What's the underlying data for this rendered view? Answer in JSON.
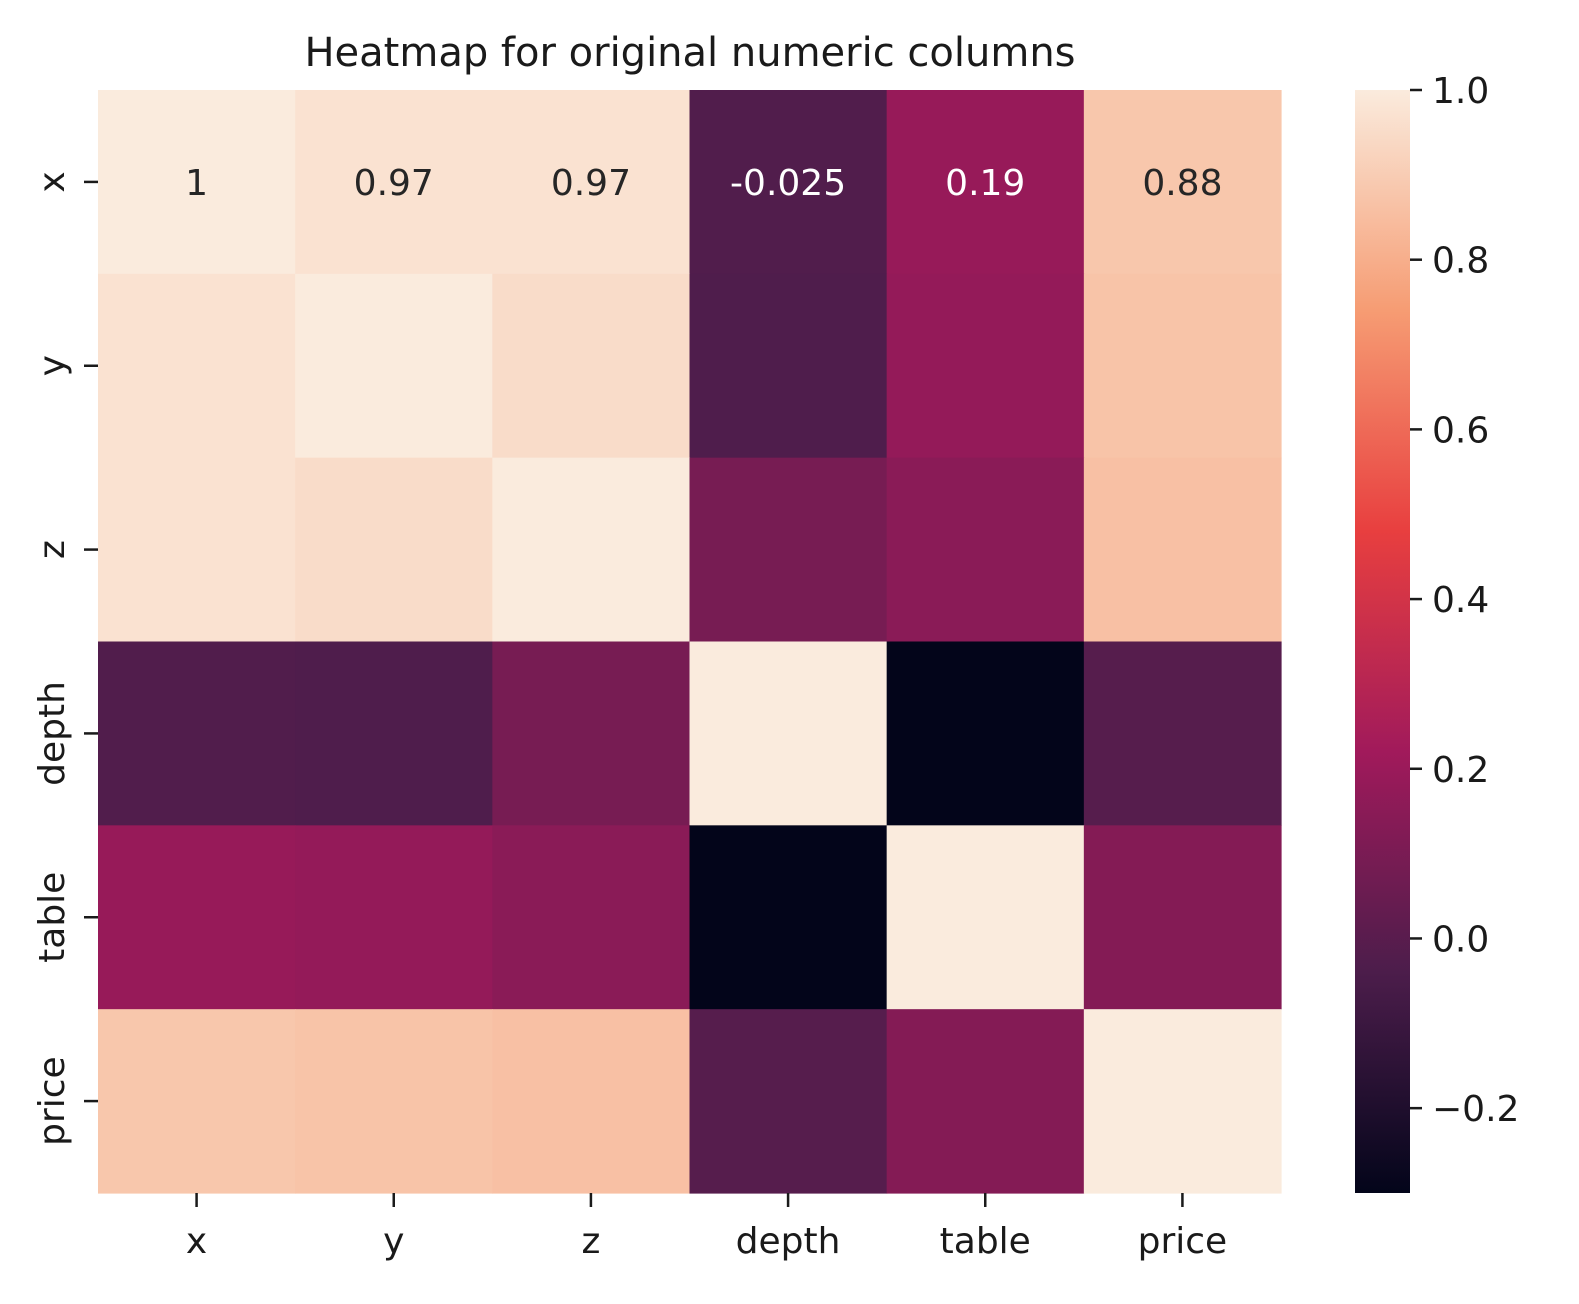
{
  "chart_data": {
    "type": "heatmap",
    "title": "Heatmap for original numeric columns",
    "xlabel": "",
    "ylabel": "",
    "x_categories": [
      "x",
      "y",
      "z",
      "depth",
      "table",
      "price"
    ],
    "y_categories": [
      "x",
      "y",
      "z",
      "depth",
      "table",
      "price"
    ],
    "values": [
      [
        1.0,
        0.97,
        0.97,
        -0.025,
        0.19,
        0.88
      ],
      [
        0.97,
        1.0,
        0.95,
        -0.03,
        0.18,
        0.87
      ],
      [
        0.97,
        0.95,
        1.0,
        0.09,
        0.15,
        0.86
      ],
      [
        -0.025,
        -0.03,
        0.09,
        1.0,
        -0.3,
        -0.01
      ],
      [
        0.19,
        0.18,
        0.15,
        -0.3,
        1.0,
        0.13
      ],
      [
        0.88,
        0.87,
        0.86,
        -0.01,
        0.13,
        1.0
      ]
    ],
    "cell_annotations": [
      [
        "1",
        "0.97",
        "0.97",
        "-0.025",
        "0.19",
        "0.88"
      ],
      [
        "",
        "",
        "",
        "",
        "",
        ""
      ],
      [
        "",
        "",
        "",
        "",
        "",
        ""
      ],
      [
        "",
        "",
        "",
        "",
        "",
        ""
      ],
      [
        "",
        "",
        "",
        "",
        "",
        ""
      ],
      [
        "",
        "",
        "",
        "",
        "",
        ""
      ]
    ],
    "colorbar": {
      "range": [
        -0.3,
        1.0
      ],
      "ticks": [
        1.0,
        0.8,
        0.6,
        0.4,
        0.2,
        0.0,
        -0.2
      ],
      "tick_labels": [
        "1.0",
        "0.8",
        "0.6",
        "0.4",
        "0.2",
        "0.0",
        "−0.2"
      ]
    },
    "colormap": "rocket",
    "colormap_stops": [
      "#03051a",
      "#4c1d4b",
      "#a11a5b",
      "#e83f3f",
      "#f69c73",
      "#faebdd"
    ],
    "grid": false,
    "legend": "colorbar-right"
  }
}
